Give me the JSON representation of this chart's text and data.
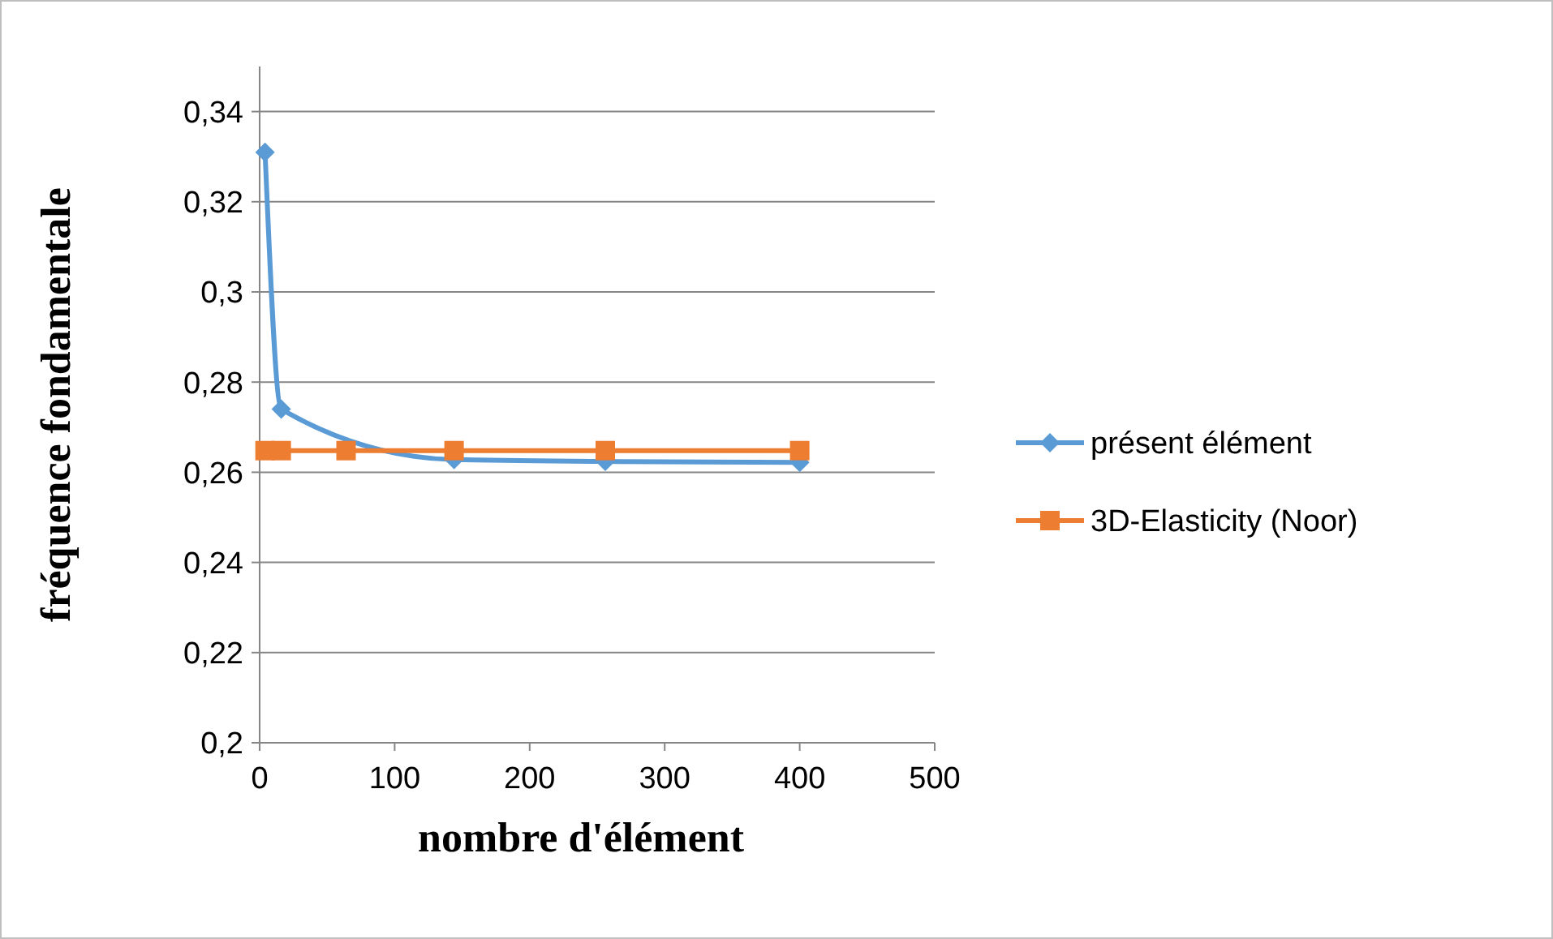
{
  "chart_data": {
    "type": "line",
    "xlabel": "nombre d'élément",
    "ylabel": "fréquence fondamentale",
    "x": [
      4,
      16,
      64,
      144,
      256,
      400
    ],
    "series": [
      {
        "name": "présent élément",
        "color": "#5b9bd5",
        "marker": "diamond",
        "values": [
          0.331,
          0.274,
          null,
          0.2628,
          0.2624,
          0.2622
        ]
      },
      {
        "name": "3D-Elasticity (Noor)",
        "color": "#ed7d31",
        "marker": "square",
        "values": [
          0.2648,
          0.2648,
          0.2648,
          0.2648,
          0.2648,
          0.2648
        ]
      }
    ],
    "xlim": [
      0,
      500
    ],
    "xticks": [
      0,
      100,
      200,
      300,
      400,
      500
    ],
    "ylim": [
      0.2,
      0.35
    ],
    "yticks": [
      {
        "value": 0.2,
        "label": "0,2"
      },
      {
        "value": 0.22,
        "label": "0,22"
      },
      {
        "value": 0.24,
        "label": "0,24"
      },
      {
        "value": 0.26,
        "label": "0,26"
      },
      {
        "value": 0.28,
        "label": "0,28"
      },
      {
        "value": 0.3,
        "label": "0,3"
      },
      {
        "value": 0.32,
        "label": "0,32"
      },
      {
        "value": 0.34,
        "label": "0,34"
      }
    ],
    "grid": "y",
    "legend": "right"
  }
}
